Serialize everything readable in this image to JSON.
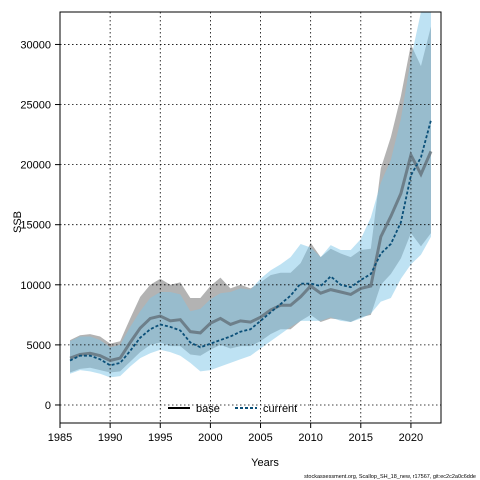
{
  "chart_data": {
    "type": "line",
    "xlabel": "Years",
    "ylabel": "SSB",
    "xlim": [
      1985,
      2023
    ],
    "ylim": [
      -1500,
      32700
    ],
    "x_ticks": [
      1985,
      1990,
      1995,
      2000,
      2005,
      2010,
      2015,
      2020
    ],
    "y_ticks": [
      0,
      5000,
      10000,
      15000,
      20000,
      25000,
      30000
    ],
    "grid": true,
    "legend_position": "bottom",
    "footnote": "stockassessment.org, Scallop_SH_18_new, r17567, git:ec2c2a0c6dde",
    "x": [
      1986,
      1987,
      1988,
      1989,
      1990,
      1991,
      1992,
      1993,
      1994,
      1995,
      1996,
      1997,
      1998,
      1999,
      2000,
      2001,
      2002,
      2003,
      2004,
      2005,
      2006,
      2007,
      2008,
      2009,
      2010,
      2011,
      2012,
      2013,
      2014,
      2015,
      2016,
      2017,
      2018,
      2019,
      2020,
      2021,
      2022
    ],
    "series": [
      {
        "name": "base",
        "color": "#5f6b73",
        "band_color": "#9a9a9a",
        "values": [
          3900,
          4200,
          4300,
          4100,
          3700,
          3900,
          5200,
          6400,
          7200,
          7400,
          7000,
          7100,
          6100,
          6000,
          6800,
          7200,
          6700,
          7000,
          6900,
          7300,
          7900,
          8300,
          8300,
          9000,
          9900,
          9300,
          9600,
          9400,
          9200,
          9700,
          9900,
          14000,
          15700,
          17600,
          20800,
          19200,
          21100
        ],
        "lower": [
          2700,
          3000,
          3100,
          2900,
          2700,
          2800,
          3600,
          4400,
          5000,
          5200,
          4900,
          4900,
          4200,
          4100,
          4600,
          5000,
          4700,
          4900,
          4900,
          5300,
          5900,
          6300,
          6300,
          7000,
          7500,
          6900,
          7200,
          7100,
          6900,
          7300,
          7500,
          10000,
          10900,
          12200,
          14300,
          13200,
          14300
        ],
        "upper": [
          5400,
          5800,
          5900,
          5700,
          5100,
          5300,
          7200,
          9000,
          10000,
          10500,
          10000,
          10200,
          8900,
          8900,
          9900,
          10600,
          9700,
          10000,
          9700,
          10200,
          10800,
          11000,
          11000,
          11800,
          13500,
          12300,
          13000,
          12600,
          12300,
          12900,
          13000,
          19700,
          22300,
          25700,
          30000,
          28200,
          31500
        ]
      },
      {
        "name": "current",
        "color": "#0a4f78",
        "band_color": "#7ec6e8",
        "values": [
          3700,
          4100,
          4100,
          3800,
          3300,
          3500,
          4500,
          5600,
          6300,
          6700,
          6500,
          6200,
          5200,
          4800,
          5100,
          5400,
          5700,
          6100,
          6300,
          7000,
          7700,
          8400,
          9100,
          10100,
          10100,
          9900,
          10700,
          10000,
          9800,
          10400,
          10900,
          12600,
          13400,
          15200,
          19100,
          20600,
          23700
        ],
        "lower": [
          2600,
          2900,
          2800,
          2600,
          2300,
          2400,
          3200,
          3900,
          4300,
          4600,
          4400,
          4100,
          3500,
          2800,
          2900,
          3200,
          3500,
          3800,
          4100,
          4700,
          5300,
          5900,
          6500,
          7000,
          7000,
          7000,
          7300,
          7000,
          6900,
          7200,
          7600,
          8600,
          8900,
          10500,
          11700,
          12500,
          14000
        ],
        "upper": [
          5300,
          5700,
          5700,
          5400,
          4800,
          5000,
          6500,
          7800,
          8900,
          9400,
          9400,
          9200,
          7800,
          8000,
          8800,
          9300,
          9400,
          9700,
          9600,
          10500,
          11200,
          11700,
          12300,
          13400,
          13100,
          12300,
          13300,
          12900,
          12900,
          13800,
          15600,
          18500,
          20400,
          23800,
          28800,
          32700,
          32700
        ]
      }
    ]
  }
}
